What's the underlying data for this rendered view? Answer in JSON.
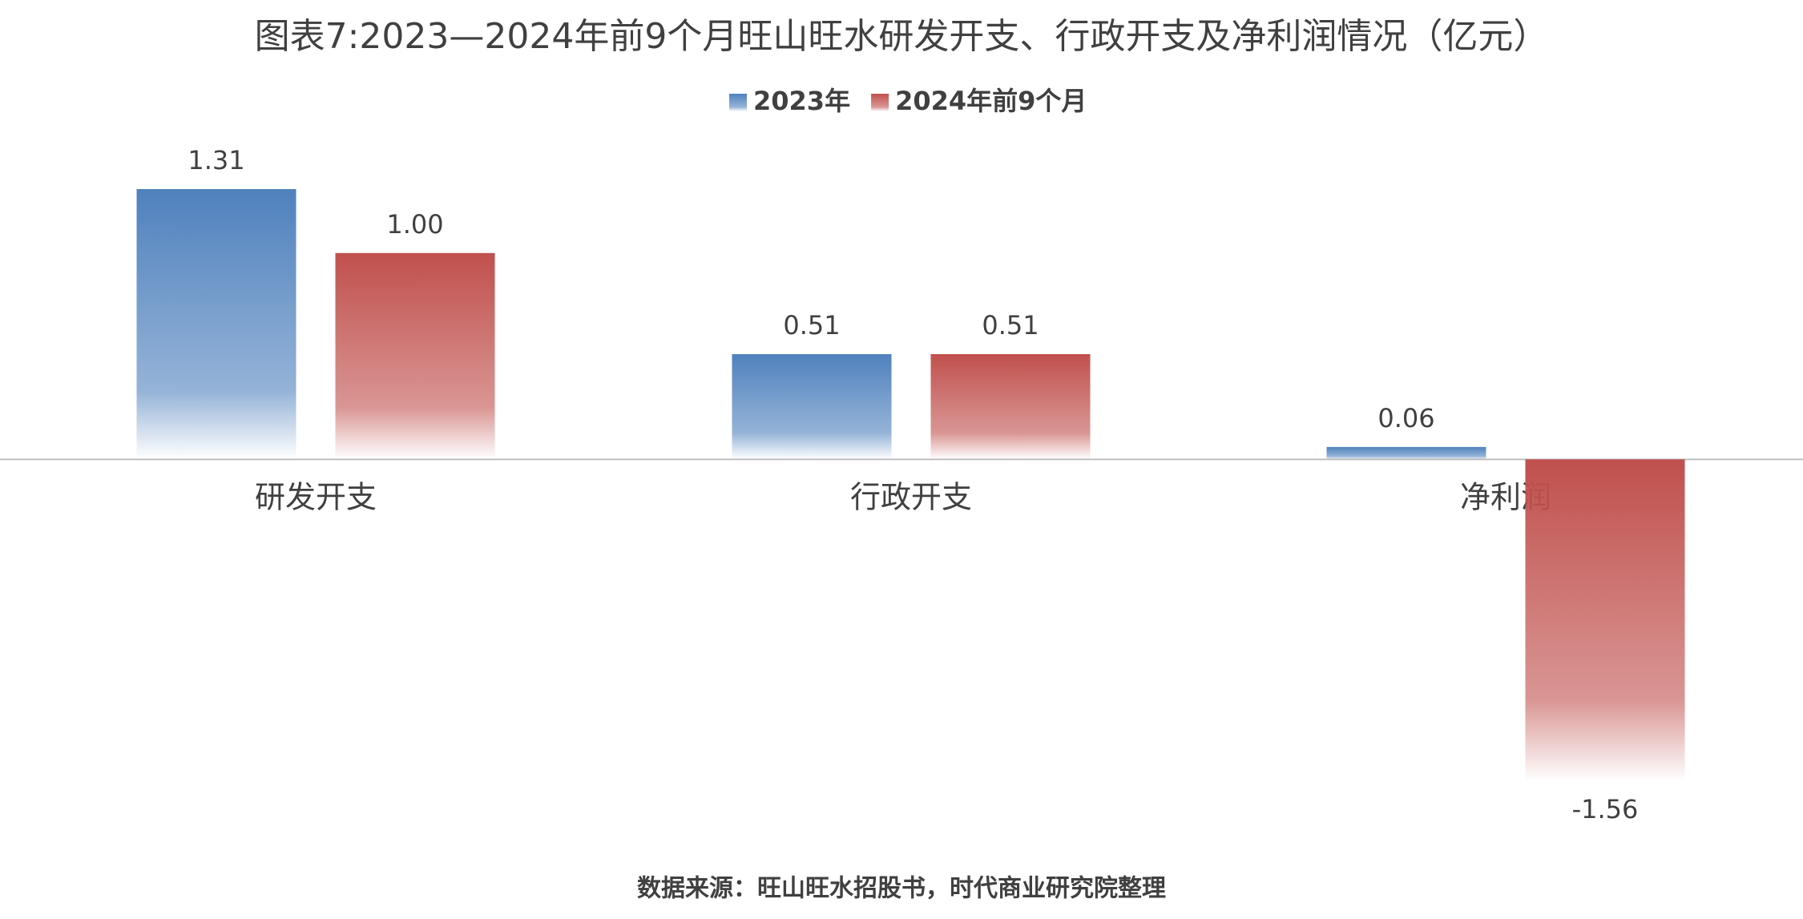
{
  "chart_data": {
    "type": "bar",
    "title": "图表7:2023—2024年前9个月旺山旺水研发开支、行政开支及净利润情况（亿元）",
    "categories": [
      "研发开支",
      "行政开支",
      "净利润"
    ],
    "series": [
      {
        "name": "2023年",
        "color": "#4f81bd",
        "values": [
          1.31,
          0.51,
          0.06
        ],
        "value_labels": [
          "1.31",
          "0.51",
          "0.06"
        ]
      },
      {
        "name": "2024年前9个月",
        "color": "#c0504d",
        "values": [
          1,
          0.51,
          -1.56
        ],
        "value_labels": [
          "1.00",
          "0.51",
          "-1.56"
        ]
      }
    ],
    "source": "数据来源：旺山旺水招股书，时代商业研究院整理",
    "legend": "top"
  }
}
